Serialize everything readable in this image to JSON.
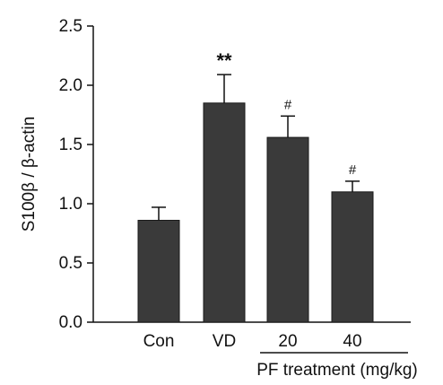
{
  "chart_data": {
    "type": "bar",
    "categories": [
      "Con",
      "VD",
      "20",
      "40"
    ],
    "values": [
      0.86,
      1.85,
      1.56,
      1.1
    ],
    "errors": [
      0.11,
      0.24,
      0.18,
      0.09
    ],
    "significance": [
      "",
      "**",
      "#",
      "#"
    ],
    "ylabel": "S100β / β-actin",
    "xlabel": "",
    "ylim": [
      0,
      2.5
    ],
    "yticks": [
      "0.0",
      "0.5",
      "1.0",
      "1.5",
      "2.0",
      "2.5"
    ],
    "group_label": "PF treatment (mg/kg)",
    "colors": {
      "bar": "#3a3a3a",
      "axis": "#111111"
    }
  }
}
